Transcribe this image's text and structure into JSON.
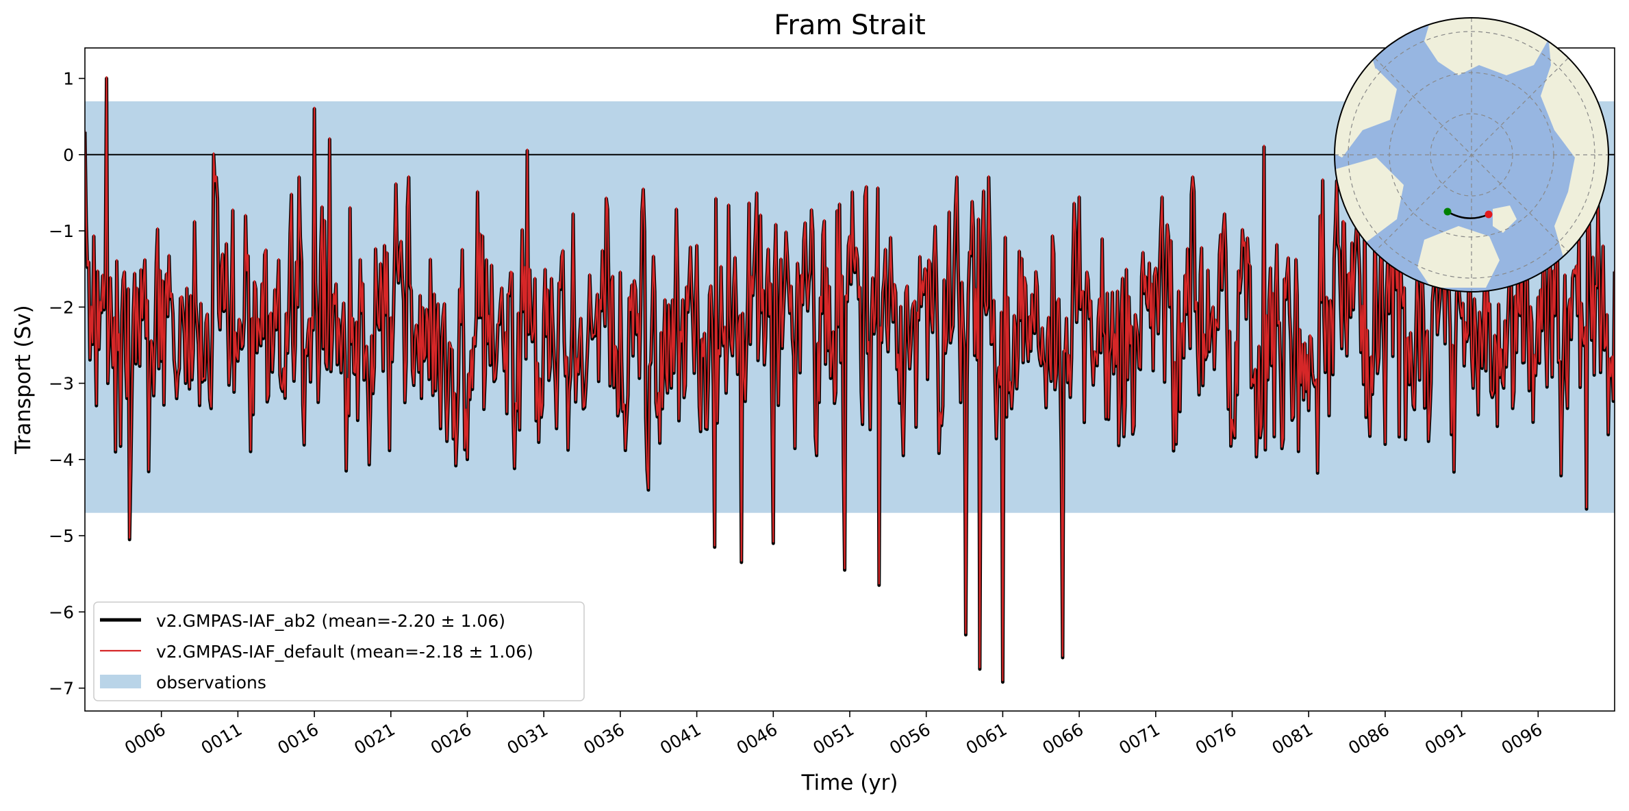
{
  "chart_data": {
    "type": "line",
    "title": "Fram Strait",
    "xlabel": "Time (yr)",
    "ylabel": "Transport (Sv)",
    "xlim": [
      1.0,
      101.0
    ],
    "ylim": [
      -7.3,
      1.4
    ],
    "x_ticks": [
      6,
      11,
      16,
      21,
      26,
      31,
      36,
      41,
      46,
      51,
      56,
      61,
      66,
      71,
      76,
      81,
      86,
      91,
      96
    ],
    "x_tick_labels": [
      "0006",
      "0011",
      "0016",
      "0021",
      "0026",
      "0031",
      "0036",
      "0041",
      "0046",
      "0051",
      "0056",
      "0061",
      "0066",
      "0071",
      "0076",
      "0081",
      "0086",
      "0091",
      "0096"
    ],
    "y_ticks": [
      1,
      0,
      -1,
      -2,
      -3,
      -4,
      -5,
      -6,
      -7
    ],
    "y_tick_labels": [
      "1",
      "0",
      "−1",
      "−2",
      "−3",
      "−4",
      "−5",
      "−6",
      "−7"
    ],
    "zero_line": 0,
    "observations_band": {
      "label": "observations",
      "low": -4.7,
      "high": 0.7,
      "color": "#b9d4e8"
    },
    "series_style": [
      {
        "name": "v2.GMPAS-IAF_ab2",
        "color": "#000000"
      },
      {
        "name": "v2.GMPAS-IAF_default",
        "color": "#d62728"
      }
    ],
    "legend": {
      "position": "lower-left",
      "entries": [
        {
          "label": "v2.GMPAS-IAF_ab2 (mean=-2.20 ± 1.06)",
          "kind": "line-thick",
          "color": "#000000"
        },
        {
          "label": "v2.GMPAS-IAF_default (mean=-2.18 ± 1.06)",
          "kind": "line-thin",
          "color": "#d62728"
        },
        {
          "label": "observations",
          "kind": "patch",
          "color": "#b9d4e8"
        }
      ]
    },
    "series_stats": {
      "mean": -2.2,
      "std": 1.06,
      "points_per_year": 12,
      "default_offset": 0.02
    },
    "anchors": [
      {
        "x": 1.0,
        "y": 0.3
      },
      {
        "x": 2.4,
        "y": 1.0
      },
      {
        "x": 3.0,
        "y": -3.9
      },
      {
        "x": 3.1,
        "y": -1.4
      },
      {
        "x": 3.9,
        "y": -5.05
      },
      {
        "x": 7.0,
        "y": -3.2
      },
      {
        "x": 9.4,
        "y": 0.0
      },
      {
        "x": 16.0,
        "y": 0.6
      },
      {
        "x": 17.0,
        "y": 0.2
      },
      {
        "x": 18.1,
        "y": -4.15
      },
      {
        "x": 29.9,
        "y": 0.05
      },
      {
        "x": 42.2,
        "y": -5.15
      },
      {
        "x": 43.9,
        "y": -5.35
      },
      {
        "x": 46.0,
        "y": -5.1
      },
      {
        "x": 50.7,
        "y": -5.45
      },
      {
        "x": 52.9,
        "y": -5.65
      },
      {
        "x": 58.6,
        "y": -6.3
      },
      {
        "x": 59.5,
        "y": -6.75
      },
      {
        "x": 61.0,
        "y": -6.92
      },
      {
        "x": 64.9,
        "y": -6.6
      },
      {
        "x": 78.1,
        "y": 0.1
      },
      {
        "x": 99.2,
        "y": -4.65
      }
    ],
    "inset_map": {
      "type": "north-polar-stereographic",
      "transect": "Fram Strait",
      "start_marker_color": "#008000",
      "end_marker_color": "#e31a1c",
      "ocean_color": "#97b6e1",
      "land_color": "#efefdb"
    }
  }
}
